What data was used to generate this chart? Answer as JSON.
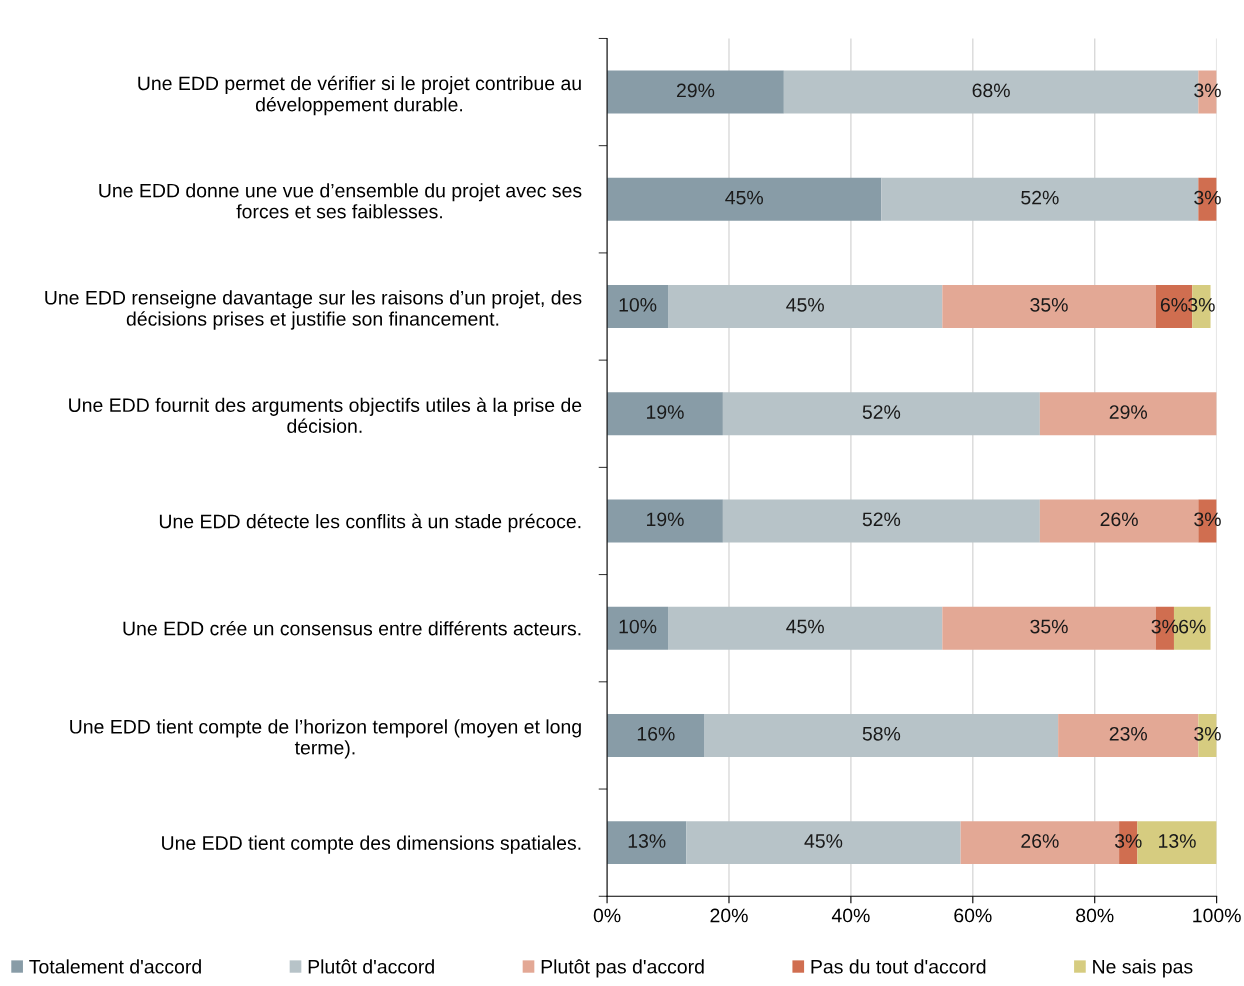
{
  "chart_data": {
    "type": "bar",
    "orientation": "horizontal",
    "stacked": true,
    "categories": [
      "Une EDD permet de vérifier si le projet contribue au\ndéveloppement durable.",
      "Une EDD donne une vue d’ensemble du projet avec ses\nforces et ses faiblesses.",
      "Une EDD renseigne davantage sur les raisons d’un projet, des\ndécisions prises et justifie son financement.",
      "Une EDD fournit des arguments objectifs utiles à la prise de\ndécision.",
      "Une EDD détecte les conflits à un stade précoce.",
      "Une EDD crée un consensus entre différents acteurs.",
      "Une EDD tient compte de l’horizon temporel (moyen et long\nterme).",
      "Une EDD tient compte des dimensions spatiales."
    ],
    "series": [
      {
        "name": "Totalement d'accord",
        "color": "#889ca7",
        "values": [
          29,
          45,
          10,
          19,
          19,
          10,
          16,
          13
        ],
        "value_labels": [
          "29%",
          "45%",
          "10%",
          "19%",
          "19%",
          "10%",
          "16%",
          "13%"
        ]
      },
      {
        "name": "Plutôt d'accord",
        "color": "#b7c3c8",
        "values": [
          68,
          52,
          45,
          52,
          52,
          45,
          58,
          45
        ],
        "value_labels": [
          "68%",
          "52%",
          "45%",
          "52%",
          "52%",
          "45%",
          "58%",
          "45%"
        ]
      },
      {
        "name": "Plutôt pas d'accord",
        "color": "#e3a895",
        "values": [
          3,
          null,
          35,
          29,
          26,
          35,
          23,
          26
        ],
        "value_labels": [
          "3%",
          null,
          "35%",
          "29%",
          "26%",
          "35%",
          "23%",
          "26%"
        ]
      },
      {
        "name": "Pas du tout d'accord",
        "color": "#d06e50",
        "values": [
          null,
          3,
          6,
          null,
          3,
          3,
          null,
          3
        ],
        "value_labels": [
          null,
          "3%",
          "6%",
          null,
          "3%",
          "3%",
          null,
          "3%"
        ]
      },
      {
        "name": "Ne sais pas",
        "color": "#d6cc80",
        "values": [
          null,
          null,
          3,
          null,
          null,
          6,
          3,
          13
        ],
        "value_labels": [
          null,
          null,
          "3%",
          null,
          null,
          "6%",
          "3%",
          "13%"
        ]
      }
    ],
    "xlim": [
      0,
      100
    ],
    "xticks": [
      {
        "value": 0,
        "label": "0%"
      },
      {
        "value": 20,
        "label": "20%"
      },
      {
        "value": 40,
        "label": "40%"
      },
      {
        "value": 60,
        "label": "60%"
      },
      {
        "value": 80,
        "label": "80%"
      },
      {
        "value": 100,
        "label": "100%"
      }
    ],
    "grid": "x",
    "legend": "bottom"
  }
}
